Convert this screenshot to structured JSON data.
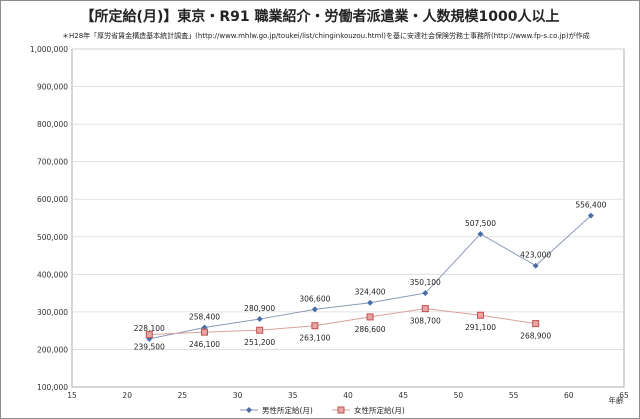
{
  "chart_data": {
    "type": "line",
    "title": "【所定給(月)】東京・R91 職業紹介・労働者派遣業・人数規模1000人以上",
    "subtitle": "＊H28年「厚労省賃金構造基本統計調査」(http://www.mhlw.go.jp/toukei/list/chinginkouzou.html)を基に安達社会保険労務士事務所(http://www.fp-s.co.jp)が作成",
    "xlabel": "年齢",
    "ylabel": "",
    "xlim": [
      15,
      65
    ],
    "ylim": [
      100000,
      1000000
    ],
    "xticks": [
      15,
      20,
      25,
      30,
      35,
      40,
      45,
      50,
      55,
      60,
      65
    ],
    "yticks": [
      "100,000",
      "200,000",
      "300,000",
      "400,000",
      "500,000",
      "600,000",
      "700,000",
      "800,000",
      "900,000",
      "1,000,000"
    ],
    "grid": true,
    "legend_position": "bottom",
    "series": [
      {
        "name": "男性所定給(月)",
        "color": "#4a6fa5",
        "marker": "diamond",
        "x": [
          22,
          27,
          32,
          37,
          42,
          47,
          52,
          57,
          62
        ],
        "values": [
          228100,
          258400,
          280900,
          306600,
          324400,
          350100,
          507500,
          423000,
          556400
        ],
        "labels": [
          "228,100",
          "258,400",
          "280,900",
          "306,600",
          "324,400",
          "350,100",
          "507,500",
          "423,000",
          "556,400"
        ]
      },
      {
        "name": "女性所定給(月)",
        "color": "#c0504d",
        "marker": "square",
        "x": [
          22,
          27,
          32,
          37,
          42,
          47,
          52,
          57
        ],
        "values": [
          239500,
          246100,
          251200,
          263100,
          286600,
          308700,
          291100,
          268900
        ],
        "labels": [
          "239,500",
          "246,100",
          "251,200",
          "263,100",
          "286,600",
          "308,700",
          "291,100",
          "268,900"
        ]
      }
    ]
  }
}
